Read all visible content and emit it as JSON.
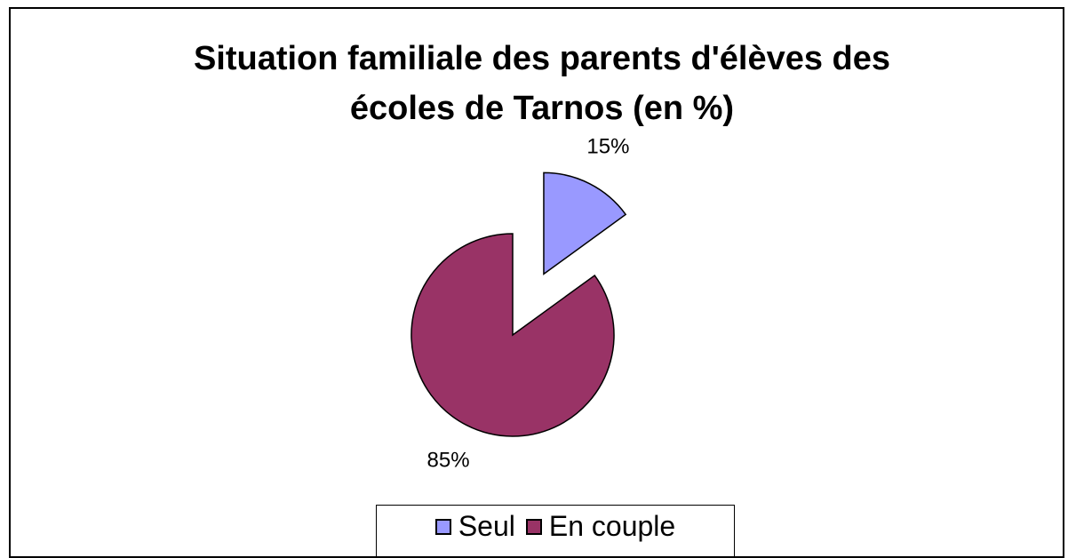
{
  "chart_data": {
    "type": "pie",
    "title": "Situation familiale des parents d'élèves des écoles de Tarnos (en %)",
    "categories": [
      "Seul",
      "En couple"
    ],
    "values": [
      15,
      85
    ],
    "value_labels": [
      "15%",
      "85%"
    ],
    "colors": [
      "#9999ff",
      "#993366"
    ],
    "legend": "bottom"
  }
}
